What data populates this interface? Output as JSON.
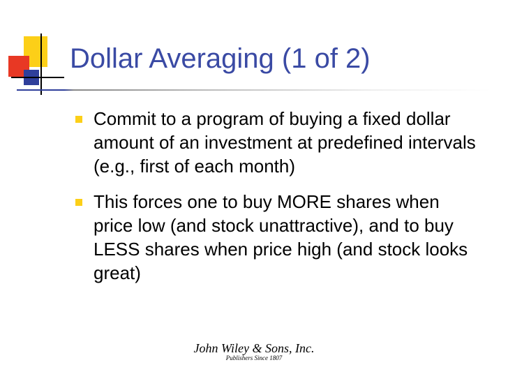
{
  "title": "Dollar Averaging (1 of 2)",
  "bullets": [
    "Commit to a program of buying a fixed dollar amount of an investment at predefined intervals (e.g., first of each month)",
    "This forces one to buy MORE shares when price low (and stock unattractive), and to buy LESS shares when price high (and stock looks great)"
  ],
  "footer": {
    "name": "John Wiley & Sons, Inc.",
    "sub": "Publishers Since 1807"
  },
  "colors": {
    "title": "#3a4aa4",
    "yellow": "#fccf18",
    "red": "#e83824",
    "blue": "#2f3f9b",
    "text": "#000000",
    "background": "#ffffff"
  },
  "typography": {
    "title_fontsize": 40,
    "body_fontsize": 26,
    "footer_name_fontsize": 18,
    "footer_sub_fontsize": 9
  }
}
